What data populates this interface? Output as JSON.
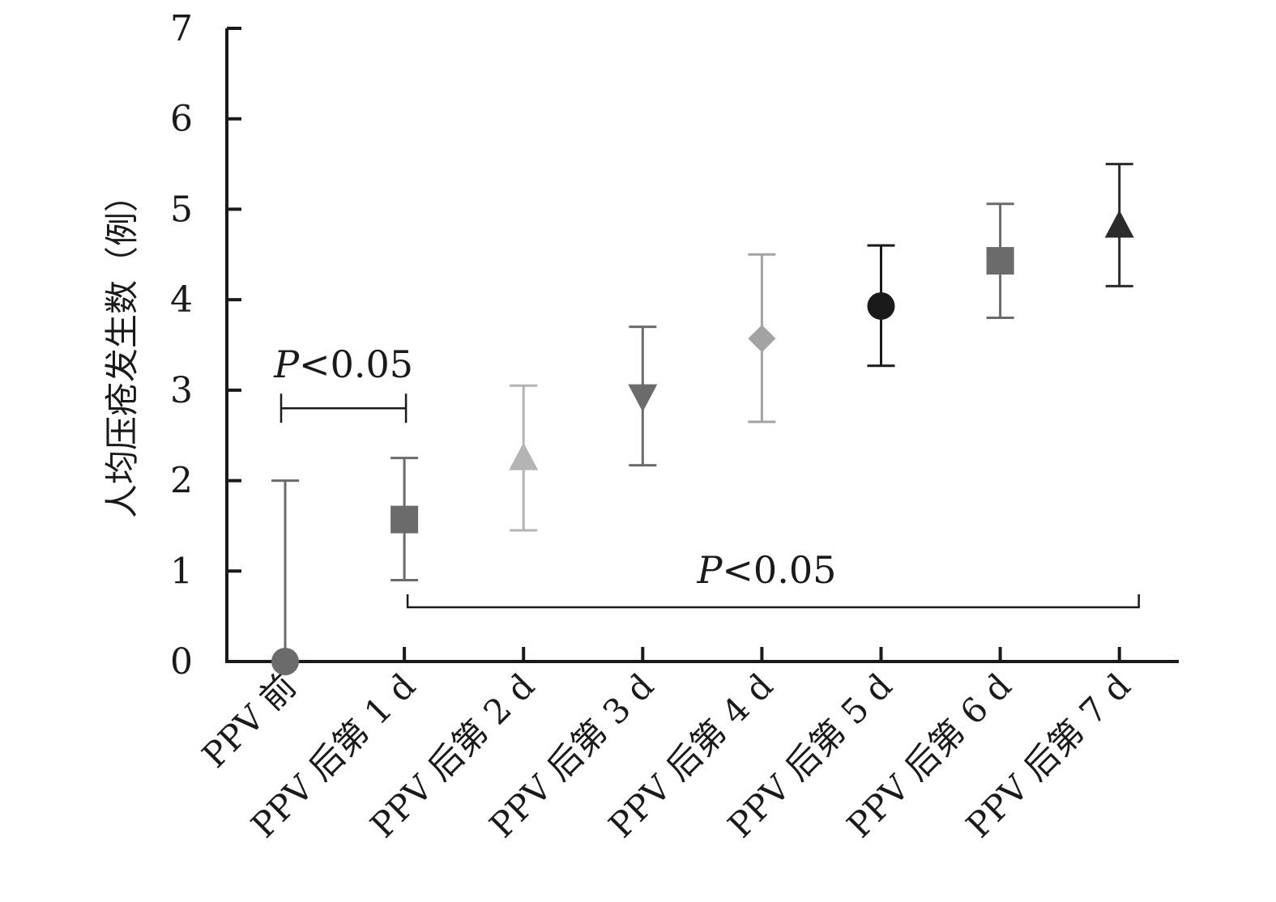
{
  "chart_data": {
    "type": "scatter",
    "title": "",
    "xlabel": "",
    "ylabel": "人均压疮发生数（例）",
    "ylim": [
      0,
      7
    ],
    "yticks": [
      0,
      1,
      2,
      3,
      4,
      5,
      6,
      7
    ],
    "grid": false,
    "categories": [
      "PPV 前",
      "PPV 后第 1 d",
      "PPV 后第 2 d",
      "PPV 后第 3 d",
      "PPV 后第 4 d",
      "PPV 后第 5 d",
      "PPV 后第 6 d",
      "PPV 后第 7 d"
    ],
    "points": [
      {
        "category": "PPV 前",
        "mean": 0.0,
        "lower": 0.0,
        "upper": 2.0,
        "marker": "circle",
        "color": "#6b6b6b"
      },
      {
        "category": "PPV 后第 1 d",
        "mean": 1.57,
        "lower": 0.9,
        "upper": 2.25,
        "marker": "square",
        "color": "#6b6b6b"
      },
      {
        "category": "PPV 后第 2 d",
        "mean": 2.25,
        "lower": 1.45,
        "upper": 3.05,
        "marker": "triangle-up",
        "color": "#b4b4b4"
      },
      {
        "category": "PPV 后第 3 d",
        "mean": 2.93,
        "lower": 2.17,
        "upper": 3.7,
        "marker": "triangle-down",
        "color": "#6b6b6b"
      },
      {
        "category": "PPV 后第 4 d",
        "mean": 3.57,
        "lower": 2.65,
        "upper": 4.5,
        "marker": "diamond",
        "color": "#a3a3a3"
      },
      {
        "category": "PPV 后第 5 d",
        "mean": 3.93,
        "lower": 3.27,
        "upper": 4.6,
        "marker": "circle",
        "color": "#1a1a1a"
      },
      {
        "category": "PPV 后第 6 d",
        "mean": 4.43,
        "lower": 3.8,
        "upper": 5.06,
        "marker": "square",
        "color": "#6b6b6b"
      },
      {
        "category": "PPV 后第 7 d",
        "mean": 4.82,
        "lower": 4.15,
        "upper": 5.5,
        "marker": "triangle-up",
        "color": "#2b2b2b"
      }
    ],
    "annotations": [
      {
        "text_italic": "P",
        "text_rest": "<0.05",
        "from": "PPV 前",
        "to": "PPV 后第 1 d",
        "y": 2.8
      },
      {
        "text_italic": "P",
        "text_rest": "<0.05",
        "from": "PPV 后第 1 d",
        "to": "PPV 后第 7 d",
        "y": 0.6
      }
    ]
  }
}
